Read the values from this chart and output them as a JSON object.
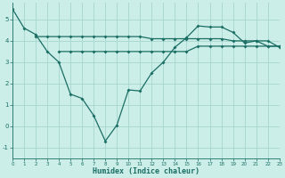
{
  "xlabel": "Humidex (Indice chaleur)",
  "bg_color": "#cceee8",
  "grid_color": "#aad8d0",
  "line_color": "#1a6e64",
  "line1_x": [
    0,
    1,
    2,
    3,
    4,
    5,
    6,
    7,
    8,
    9,
    10,
    11,
    12,
    13,
    14,
    15,
    16,
    17,
    18,
    19,
    20,
    21,
    22,
    23
  ],
  "line1_y": [
    5.5,
    4.6,
    4.3,
    3.5,
    3.0,
    1.5,
    1.3,
    0.5,
    -0.7,
    0.05,
    1.7,
    1.65,
    2.5,
    3.0,
    3.7,
    4.15,
    4.7,
    4.65,
    4.65,
    4.4,
    3.9,
    4.0,
    4.0,
    3.7
  ],
  "line2_x": [
    2,
    3,
    4,
    5,
    6,
    7,
    8,
    9,
    10,
    11,
    12,
    13,
    14,
    15,
    16,
    17,
    18,
    19,
    20,
    21,
    22,
    23
  ],
  "line2_y": [
    4.2,
    4.2,
    4.2,
    4.2,
    4.2,
    4.2,
    4.2,
    4.2,
    4.2,
    4.2,
    4.1,
    4.1,
    4.1,
    4.1,
    4.1,
    4.1,
    4.1,
    4.0,
    4.0,
    4.0,
    3.75,
    3.75
  ],
  "line3_x": [
    4,
    5,
    6,
    7,
    8,
    9,
    10,
    11,
    12,
    13,
    14,
    15,
    16,
    17,
    18,
    19,
    20,
    21,
    22,
    23
  ],
  "line3_y": [
    3.5,
    3.5,
    3.5,
    3.5,
    3.5,
    3.5,
    3.5,
    3.5,
    3.5,
    3.5,
    3.5,
    3.5,
    3.75,
    3.75,
    3.75,
    3.75,
    3.75,
    3.75,
    3.75,
    3.75
  ],
  "xlim": [
    0,
    23
  ],
  "ylim": [
    -1.5,
    5.8
  ],
  "yticks": [
    -1,
    0,
    1,
    2,
    3,
    4,
    5
  ],
  "xticks": [
    0,
    1,
    2,
    3,
    4,
    5,
    6,
    7,
    8,
    9,
    10,
    11,
    12,
    13,
    14,
    15,
    16,
    17,
    18,
    19,
    20,
    21,
    22,
    23
  ],
  "markersize": 2,
  "linewidth": 0.9
}
